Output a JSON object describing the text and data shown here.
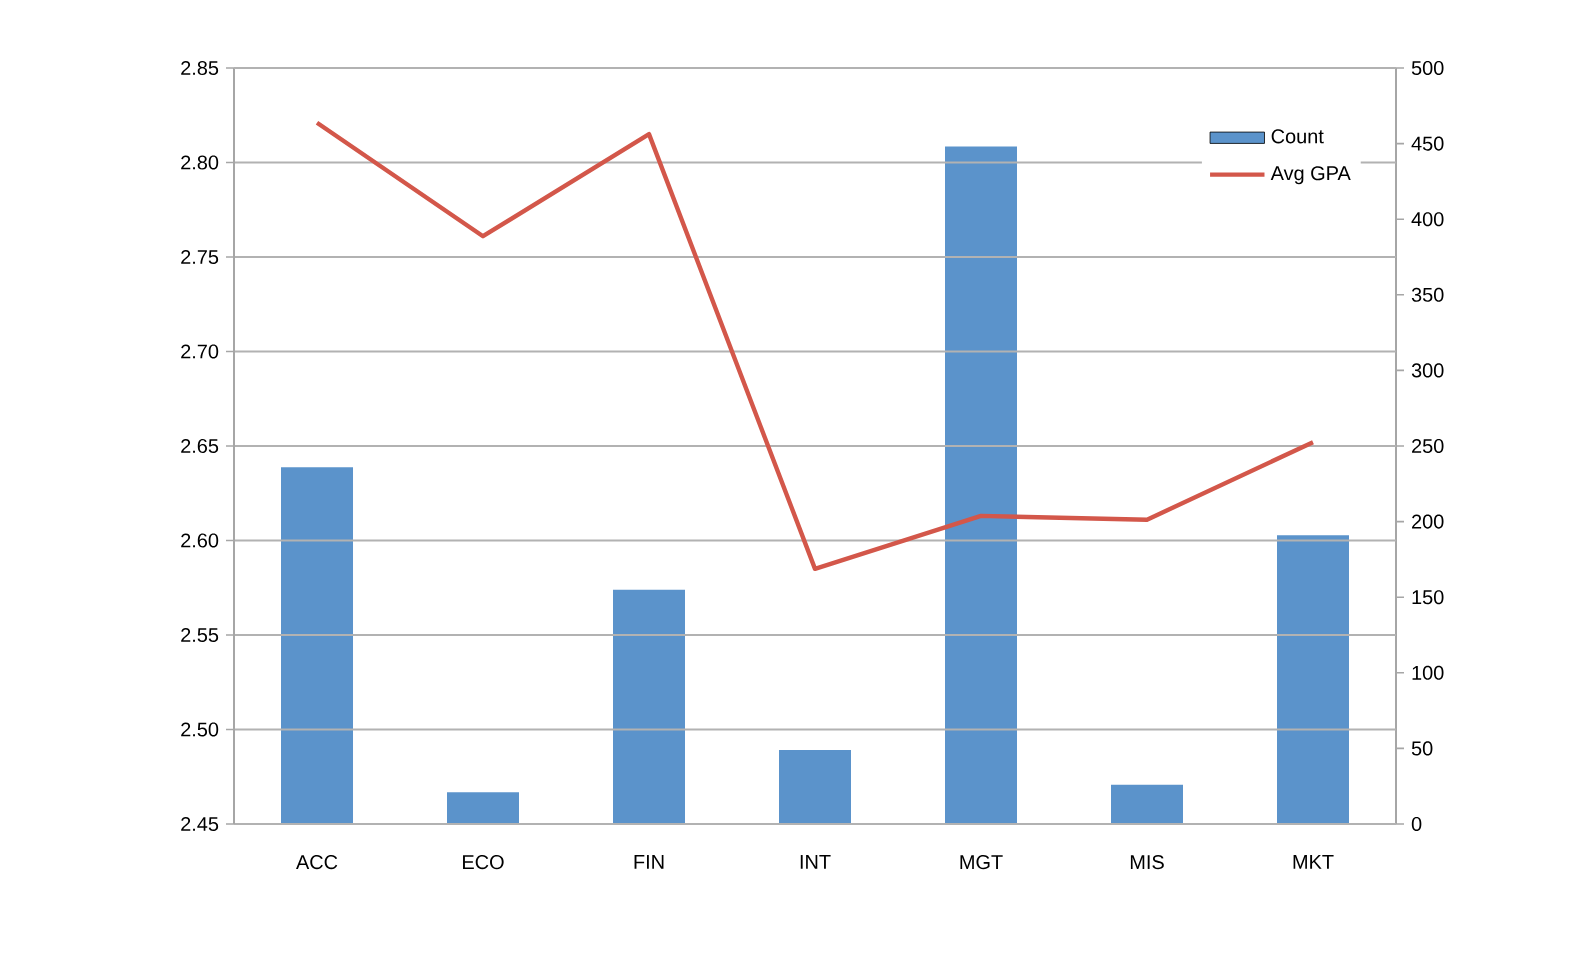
{
  "chart_data": {
    "type": "bar",
    "categories": [
      "ACC",
      "ECO",
      "FIN",
      "INT",
      "MGT",
      "MIS",
      "MKT"
    ],
    "series": [
      {
        "name": "Count",
        "axis": "y2",
        "color": "#5b93cb",
        "values": [
          236,
          21,
          155,
          49,
          448,
          26,
          191
        ]
      },
      {
        "name": "Avg GPA",
        "type": "line",
        "color": "#d3574a",
        "values": [
          2.821,
          2.761,
          2.815,
          2.585,
          2.613,
          2.611,
          2.652
        ]
      }
    ],
    "ylim": [
      2.45,
      2.85
    ],
    "yticks": [
      2.45,
      {
        "value": 2.5,
        "label": "2.50"
      },
      2.55,
      {
        "value": 2.6,
        "label": "2.60"
      },
      2.65,
      {
        "value": 2.7,
        "label": "2.70"
      },
      2.75,
      {
        "value": 2.8,
        "label": "2.80"
      },
      2.85
    ],
    "y2lim": [
      0,
      500
    ],
    "y2ticks": [
      0,
      50,
      100,
      150,
      200,
      250,
      300,
      350,
      400,
      450,
      500
    ],
    "grid": "y",
    "legend": "top right",
    "marker": "none",
    "line_style": "solid"
  }
}
